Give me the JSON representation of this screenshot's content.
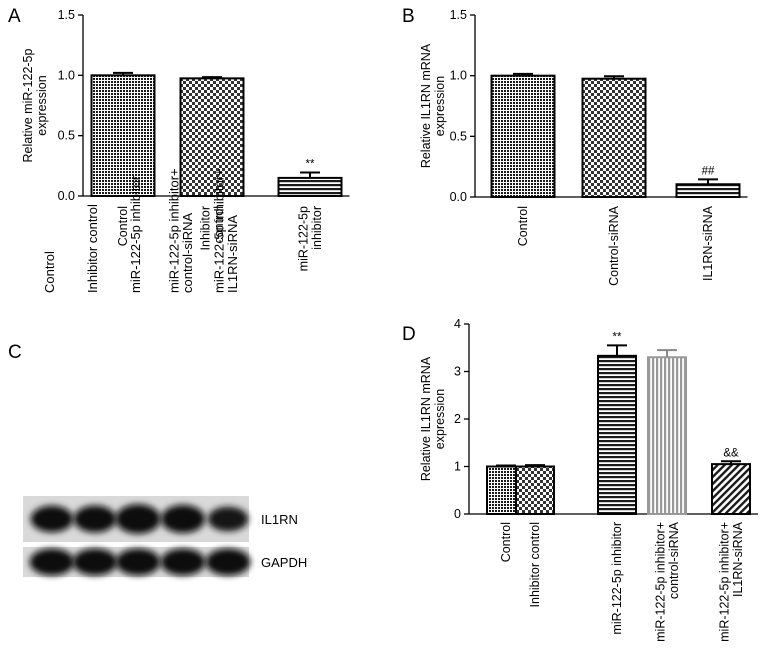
{
  "panels": {
    "A": "A",
    "B": "B",
    "C": "C",
    "D": "D"
  },
  "blot": {
    "lanes": [
      [
        "Control"
      ],
      [
        "Inhibitor control"
      ],
      [
        "miR-122-5p inhibitor"
      ],
      [
        "miR-122-5p inhibitor+",
        "control-siRNA"
      ],
      [
        "miR-122-5p inhibitor+",
        "IL1RN-siRNA"
      ]
    ],
    "bands": [
      {
        "label": "IL1RN",
        "intensities": [
          0.72,
          0.75,
          0.95,
          0.85,
          0.55
        ]
      },
      {
        "label": "GAPDH",
        "intensities": [
          0.9,
          0.9,
          0.9,
          0.9,
          0.9
        ]
      }
    ]
  },
  "chart_data": [
    {
      "panel": "A",
      "type": "bar",
      "ylabel": [
        "Relative miR-122-5p",
        "expression"
      ],
      "ylim": [
        0,
        1.5
      ],
      "yticks": [
        "0.0",
        "0.5",
        "1.0",
        "1.5"
      ],
      "categories": [
        [
          "Control"
        ],
        [
          "Inhibitor",
          "control"
        ],
        [
          "miR-122-5p",
          "inhibitor"
        ]
      ],
      "values": [
        1.0,
        0.975,
        0.15
      ],
      "errors": [
        0.02,
        0.01,
        0.045
      ],
      "annotations": [
        "",
        "",
        "**"
      ],
      "patterns": [
        "dots",
        "checker",
        "hlines"
      ]
    },
    {
      "panel": "B",
      "type": "bar",
      "ylabel": [
        "Relative IL1RN mRNA",
        "expression"
      ],
      "ylim": [
        0,
        1.5
      ],
      "yticks": [
        "0.0",
        "0.5",
        "1.0",
        "1.5"
      ],
      "categories": [
        [
          "Control"
        ],
        [
          "Control-siRNA"
        ],
        [
          "IL1RN-siRNA"
        ]
      ],
      "values": [
        1.0,
        0.975,
        0.105
      ],
      "errors": [
        0.015,
        0.02,
        0.04
      ],
      "annotations": [
        "",
        "",
        "##"
      ],
      "patterns": [
        "dots",
        "checker",
        "hlines"
      ]
    },
    {
      "panel": "D",
      "type": "bar",
      "ylabel": [
        "Relative IL1RN mRNA",
        "expression"
      ],
      "ylim": [
        0,
        4
      ],
      "yticks": [
        "0",
        "1",
        "2",
        "3",
        "4"
      ],
      "categories": [
        [
          "Control"
        ],
        [
          "Inhibitor control"
        ],
        [
          "miR-122-5p inhibitor"
        ],
        [
          "miR-122-5p inhibitor+",
          "control-siRNA"
        ],
        [
          "miR-122-5p inhibitor+",
          "IL1RN-siRNA"
        ]
      ],
      "values": [
        1.0,
        1.0,
        3.33,
        3.3,
        1.05
      ],
      "errors": [
        0.02,
        0.03,
        0.22,
        0.15,
        0.06
      ],
      "annotations": [
        "",
        "",
        "**",
        "",
        "&&"
      ],
      "patterns": [
        "dots",
        "checker",
        "hlines",
        "vlines",
        "diag"
      ]
    }
  ]
}
